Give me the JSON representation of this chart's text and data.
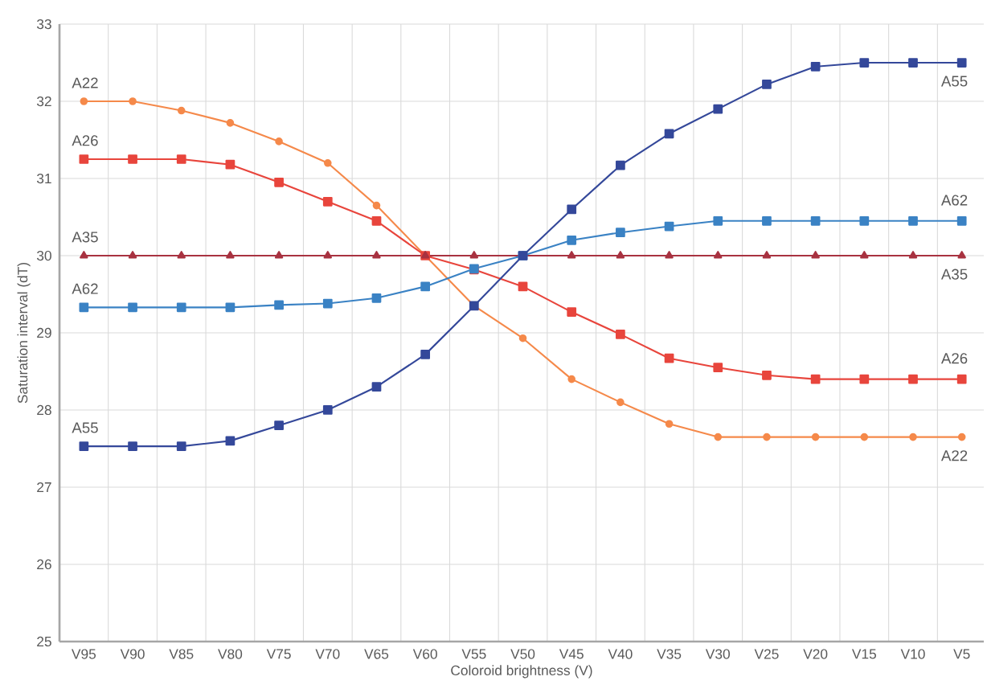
{
  "chart_data": {
    "type": "line",
    "xlabel": "Coloroid brightness  (V)",
    "ylabel": "Saturation interval  (dT)",
    "categories": [
      "V95",
      "V90",
      "V85",
      "V80",
      "V75",
      "V70",
      "V65",
      "V60",
      "V55",
      "V50",
      "V45",
      "V40",
      "V35",
      "V30",
      "V25",
      "V20",
      "V15",
      "V10",
      "V5"
    ],
    "ylim": [
      25,
      33
    ],
    "yticks": [
      25,
      26,
      27,
      28,
      29,
      30,
      31,
      32,
      33
    ],
    "grid": true,
    "series": [
      {
        "name": "A22",
        "color": "#f5894a",
        "marker": "circle",
        "values": [
          32.0,
          32.0,
          31.88,
          31.72,
          31.48,
          31.2,
          30.65,
          30.0,
          29.35,
          28.93,
          28.4,
          28.1,
          27.82,
          27.65,
          27.65,
          27.65,
          27.65,
          27.65,
          27.65
        ]
      },
      {
        "name": "A26",
        "color": "#e8453c",
        "marker": "square",
        "values": [
          31.25,
          31.25,
          31.25,
          31.18,
          30.95,
          30.7,
          30.45,
          30.0,
          29.82,
          29.6,
          29.27,
          28.98,
          28.67,
          28.55,
          28.45,
          28.4,
          28.4,
          28.4,
          28.4
        ]
      },
      {
        "name": "A35",
        "color": "#a83240",
        "marker": "triangle",
        "values": [
          30,
          30,
          30,
          30,
          30,
          30,
          30,
          30,
          30,
          30,
          30,
          30,
          30,
          30,
          30,
          30,
          30,
          30,
          30
        ]
      },
      {
        "name": "A62",
        "color": "#3a82c4",
        "marker": "square",
        "values": [
          29.33,
          29.33,
          29.33,
          29.33,
          29.36,
          29.38,
          29.45,
          29.6,
          29.83,
          30.0,
          30.2,
          30.3,
          30.38,
          30.45,
          30.45,
          30.45,
          30.45,
          30.45,
          30.45
        ]
      },
      {
        "name": "A55",
        "color": "#34489a",
        "marker": "square",
        "values": [
          27.53,
          27.53,
          27.53,
          27.6,
          27.8,
          28.0,
          28.3,
          28.72,
          29.35,
          30.0,
          30.6,
          31.17,
          31.58,
          31.9,
          32.22,
          32.45,
          32.5,
          32.5,
          32.5
        ]
      }
    ]
  }
}
